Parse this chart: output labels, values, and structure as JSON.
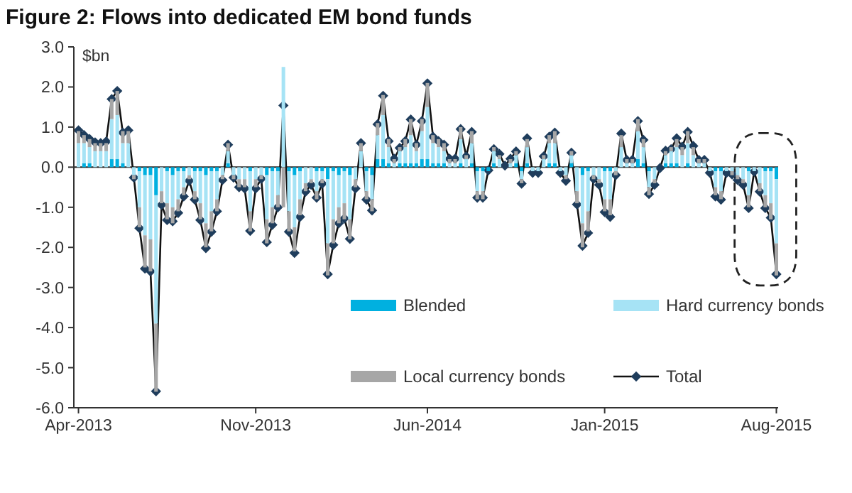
{
  "chart_data": {
    "type": "bar",
    "title": "Figure 2: Flows into dedicated EM bond funds",
    "ylabel": "$bn",
    "stacked": true,
    "legend": "bottom",
    "categories": [
      "Apr-2013",
      null,
      null,
      null,
      null,
      null,
      null,
      null,
      null,
      null,
      null,
      null,
      null,
      null,
      null,
      null,
      null,
      null,
      null,
      null,
      null,
      null,
      null,
      null,
      null,
      null,
      null,
      null,
      null,
      null,
      null,
      null,
      "Nov-2013",
      null,
      null,
      null,
      null,
      null,
      null,
      null,
      null,
      null,
      null,
      null,
      null,
      null,
      null,
      null,
      null,
      null,
      null,
      null,
      null,
      null,
      null,
      null,
      null,
      null,
      null,
      null,
      null,
      null,
      null,
      "Jun-2014",
      null,
      null,
      null,
      null,
      null,
      null,
      null,
      null,
      null,
      null,
      null,
      null,
      null,
      null,
      null,
      null,
      null,
      null,
      null,
      null,
      null,
      null,
      null,
      null,
      null,
      null,
      null,
      null,
      null,
      null,
      null,
      "Jan-2015",
      null,
      null,
      null,
      null,
      null,
      null,
      null,
      null,
      null,
      null,
      null,
      null,
      null,
      null,
      null,
      null,
      null,
      null,
      null,
      null,
      null,
      null,
      null,
      null,
      null,
      null,
      null,
      null,
      null,
      null,
      "Aug-2015"
    ],
    "ylim": [
      -6,
      3
    ],
    "yticks": [
      {
        "value": -6,
        "label": "-6.0"
      },
      {
        "value": -5,
        "label": "-5.0"
      },
      {
        "value": -4,
        "label": "-4.0"
      },
      {
        "value": -3,
        "label": "-3.0"
      },
      {
        "value": -2,
        "label": "-2.0"
      },
      {
        "value": -1,
        "label": "-1.0"
      },
      {
        "value": 0,
        "label": "0.0"
      },
      {
        "value": 1,
        "label": "1.0"
      },
      {
        "value": 2,
        "label": "2.0"
      },
      {
        "value": 3,
        "label": "3.0"
      }
    ],
    "series": [
      {
        "name": "Blended",
        "color": "#00b0e0",
        "values": [
          0,
          0.1,
          0.1,
          0,
          0,
          0,
          0.2,
          0.2,
          0.1,
          0,
          0,
          -0.1,
          -0.2,
          -0.2,
          -0.7,
          0,
          -0.1,
          -0.2,
          -0.1,
          -0.1,
          0,
          -0.1,
          -0.1,
          -0.2,
          -0.1,
          -0.1,
          0,
          0.1,
          0,
          0,
          0,
          -0.1,
          0,
          0,
          -0.2,
          -0.1,
          -0.1,
          0,
          -0.1,
          -0.2,
          -0.1,
          0,
          0,
          -0.1,
          -0.1,
          -0.3,
          -0.1,
          -0.2,
          -0.1,
          -0.2,
          0,
          0,
          -0.1,
          -0.2,
          0.2,
          0.2,
          0.1,
          0,
          0.1,
          0.1,
          0.1,
          0.1,
          0.2,
          0.2,
          0.1,
          0.1,
          0.1,
          0,
          0,
          0.1,
          0,
          0.1,
          -0.1,
          -0.1,
          -0.1,
          0.1,
          0,
          0,
          0,
          0.1,
          -0.1,
          0.1,
          0,
          0,
          0,
          0.1,
          0.1,
          0,
          0,
          0.1,
          0,
          -0.2,
          -0.1,
          0,
          0,
          -0.1,
          -0.1,
          0,
          0,
          0,
          0,
          0.2,
          0.1,
          -0.1,
          0,
          0,
          0.1,
          0.1,
          0.1,
          0,
          0.1,
          0,
          0,
          0,
          0,
          -0.1,
          -0.1,
          0,
          0,
          0,
          0,
          -0.1,
          0,
          0,
          -0.1,
          -0.1,
          -0.3
        ]
      },
      {
        "name": "Hard currency bonds",
        "color": "#a6e3f5",
        "values": [
          0.6,
          0.5,
          0.4,
          0.4,
          0.4,
          0.4,
          1.0,
          1.1,
          0.5,
          0.6,
          -0.2,
          -0.9,
          -1.5,
          -1.6,
          -3.2,
          -0.6,
          -0.8,
          -0.8,
          -0.7,
          -0.4,
          -0.2,
          -0.5,
          -0.8,
          -1.2,
          -1.0,
          -0.7,
          -0.2,
          0.3,
          -0.2,
          -0.3,
          -0.3,
          -1.0,
          -0.3,
          -0.2,
          -1.1,
          -0.9,
          -0.6,
          2.5,
          -1.0,
          -1.3,
          -0.7,
          -0.4,
          -0.3,
          -0.5,
          -0.2,
          -1.6,
          -1.2,
          -0.8,
          -0.8,
          -1.1,
          -0.3,
          0.4,
          -0.5,
          -0.6,
          0.6,
          1.1,
          0.4,
          0.1,
          0.3,
          0.4,
          0.7,
          0.3,
          0.7,
          1.3,
          0.5,
          0.4,
          0.3,
          0.1,
          0.1,
          0.6,
          0.2,
          0.5,
          -0.5,
          -0.5,
          0,
          0.3,
          0.2,
          0,
          0.1,
          0.2,
          -0.2,
          0.4,
          -0.1,
          -0.1,
          0.2,
          0.5,
          0.5,
          -0.1,
          -0.2,
          0.2,
          -0.6,
          -1.2,
          -1.0,
          -0.2,
          -0.3,
          -0.7,
          -0.7,
          -0.1,
          0.5,
          0.1,
          0.1,
          0.7,
          0.4,
          -0.4,
          -0.3,
          0,
          0.2,
          0.3,
          0.4,
          0.3,
          0.5,
          0.3,
          0.1,
          0.1,
          -0.1,
          -0.4,
          -0.5,
          -0.1,
          -0.1,
          -0.2,
          -0.3,
          -0.6,
          -0.1,
          -0.4,
          -0.6,
          -0.8,
          -1.6
        ]
      },
      {
        "name": "Local currency bonds",
        "color": "#a6a6a6",
        "values": [
          0.3,
          0.2,
          0.2,
          0.2,
          0.2,
          0.2,
          0.5,
          0.6,
          0.3,
          0.3,
          -0.1,
          -0.5,
          -0.8,
          -0.8,
          -1.7,
          -0.3,
          -0.4,
          -0.4,
          -0.3,
          -0.2,
          -0.1,
          -0.2,
          -0.4,
          -0.6,
          -0.5,
          -0.3,
          -0.1,
          0.2,
          -0.1,
          -0.2,
          -0.2,
          -0.5,
          -0.2,
          -0.1,
          -0.6,
          -0.4,
          -0.3,
          -1.0,
          -0.5,
          -0.6,
          -0.4,
          -0.2,
          -0.1,
          -0.2,
          -0.1,
          -0.8,
          -0.6,
          -0.4,
          -0.4,
          -0.5,
          -0.2,
          0.2,
          -0.2,
          -0.3,
          0.3,
          0.5,
          0.2,
          0.1,
          0.1,
          0.2,
          0.4,
          0.2,
          0.3,
          0.6,
          0.2,
          0.2,
          0.2,
          0.1,
          0.1,
          0.3,
          0.1,
          0.3,
          -0.2,
          -0.2,
          0,
          0.1,
          0.1,
          0,
          0.1,
          0.1,
          -0.1,
          0.2,
          0,
          0,
          0.1,
          0.2,
          0.3,
          0,
          -0.1,
          0.1,
          -0.3,
          -0.6,
          -0.5,
          -0.1,
          -0.1,
          -0.3,
          -0.4,
          -0.1,
          0.3,
          0.1,
          0.1,
          0.3,
          0.2,
          -0.2,
          -0.1,
          0,
          0.1,
          0.1,
          0.2,
          0.2,
          0.3,
          0.2,
          0.1,
          0.1,
          0,
          -0.2,
          -0.2,
          0,
          -0.1,
          -0.1,
          -0.1,
          -0.3,
          0,
          -0.2,
          -0.3,
          -0.4,
          -0.8
        ]
      },
      {
        "name": "Total",
        "type": "line",
        "color": "#1f3d5c",
        "marker": "diamond",
        "values": [
          0.92,
          0.8,
          0.7,
          0.62,
          0.6,
          0.64,
          1.7,
          1.9,
          0.86,
          0.92,
          -0.26,
          -1.52,
          -2.53,
          -2.6,
          -5.59,
          -0.94,
          -1.32,
          -1.35,
          -1.14,
          -0.73,
          -0.34,
          -0.81,
          -1.32,
          -2.02,
          -1.61,
          -1.1,
          -0.32,
          0.56,
          -0.26,
          -0.5,
          -0.53,
          -1.59,
          -0.53,
          -0.29,
          -1.87,
          -1.44,
          -1.0,
          1.54,
          -1.61,
          -2.14,
          -1.24,
          -0.61,
          -0.44,
          -0.76,
          -0.41,
          -2.67,
          -1.94,
          -1.4,
          -1.28,
          -1.79,
          -0.53,
          0.6,
          -0.81,
          -1.08,
          1.07,
          1.78,
          0.65,
          0.21,
          0.48,
          0.65,
          1.19,
          0.56,
          1.15,
          2.09,
          0.76,
          0.65,
          0.56,
          0.21,
          0.21,
          0.95,
          0.27,
          0.88,
          -0.76,
          -0.76,
          -0.08,
          0.45,
          0.33,
          0.04,
          0.21,
          0.39,
          -0.41,
          0.72,
          -0.14,
          -0.14,
          0.27,
          0.76,
          0.86,
          -0.14,
          -0.34,
          0.36,
          -0.93,
          -1.96,
          -1.64,
          -0.29,
          -0.44,
          -1.12,
          -1.24,
          -0.2,
          0.84,
          0.18,
          0.18,
          1.15,
          0.68,
          -0.67,
          -0.44,
          -0.02,
          0.41,
          0.45,
          0.72,
          0.51,
          0.88,
          0.53,
          0.18,
          0.18,
          -0.14,
          -0.73,
          -0.81,
          -0.14,
          -0.18,
          -0.32,
          -0.44,
          -1.02,
          -0.11,
          -0.61,
          -1.02,
          -1.26,
          -2.67
        ]
      }
    ]
  }
}
